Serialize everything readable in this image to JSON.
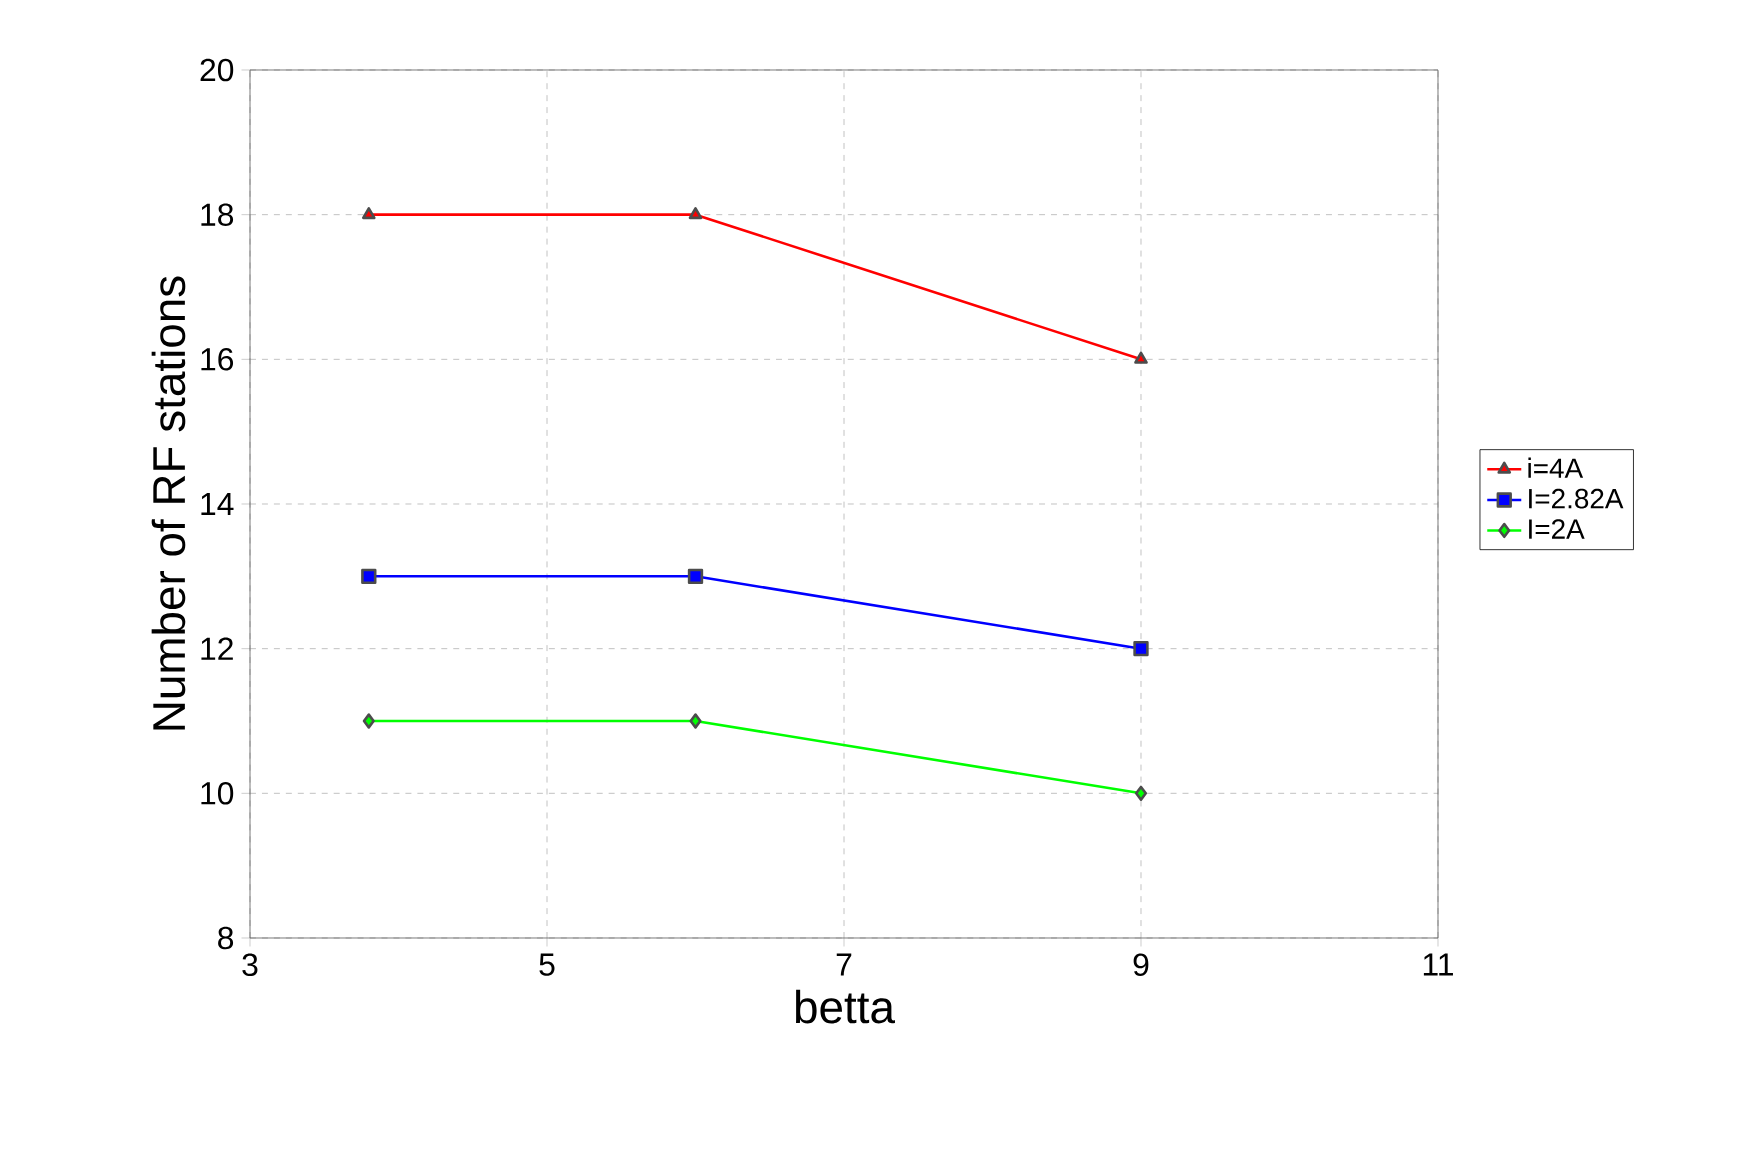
{
  "chart_data": {
    "type": "line",
    "xlabel": "betta",
    "ylabel": "Number of RF stations",
    "x": [
      3.8,
      6,
      9
    ],
    "series": [
      {
        "name": "i=4A",
        "color": "#ff0000",
        "marker": "triangle",
        "values": [
          18,
          18,
          16
        ]
      },
      {
        "name": "I=2.82A",
        "color": "#0000ff",
        "marker": "square",
        "values": [
          13,
          13,
          12
        ]
      },
      {
        "name": "I=2A",
        "color": "#00ff00",
        "marker": "diamond",
        "values": [
          11,
          11,
          10
        ]
      }
    ],
    "xlim": [
      3,
      11
    ],
    "xticks": [
      3,
      5,
      7,
      9,
      11
    ],
    "ylim": [
      8,
      20
    ],
    "yticks": [
      8,
      10,
      12,
      14,
      16,
      18,
      20
    ],
    "grid": true,
    "legend": "right",
    "line_style": "solid"
  }
}
